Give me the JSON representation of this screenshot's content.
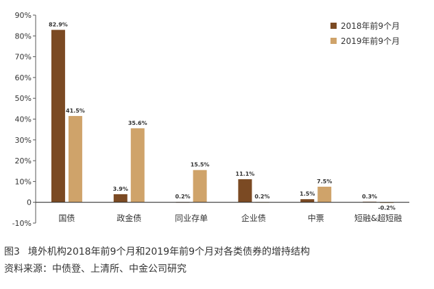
{
  "chart_data": {
    "type": "bar",
    "categories": [
      "国债",
      "政金债",
      "同业存单",
      "企业债",
      "中票",
      "短融&超短融"
    ],
    "series": [
      {
        "name": "2018年前9个月",
        "color": "#7B4A23",
        "values": [
          82.9,
          3.9,
          0.2,
          11.1,
          1.5,
          0.3
        ],
        "labels": [
          "82.9%",
          "3.9%",
          "0.2%",
          "11.1%",
          "1.5%",
          "0.3%"
        ]
      },
      {
        "name": "2019年前9个月",
        "color": "#CFA36A",
        "values": [
          41.5,
          35.6,
          15.5,
          0.2,
          7.5,
          -0.2
        ],
        "labels": [
          "41.5%",
          "35.6%",
          "15.5%",
          "0.2%",
          "7.5%",
          "-0.2%"
        ]
      }
    ],
    "ylim": [
      -10,
      90
    ],
    "yticks": [
      -10,
      0,
      10,
      20,
      30,
      40,
      50,
      60,
      70,
      80,
      90
    ],
    "ytick_labels": [
      "-10%",
      "0",
      "10%",
      "20%",
      "30%",
      "40%",
      "50%",
      "60%",
      "70%",
      "80%",
      "90%"
    ],
    "legend": "top-right",
    "grid": false
  },
  "caption": {
    "figure_label": "图3",
    "title": "境外机构2018年前9个月和2019年前9个月对各类债券的增持结构",
    "source": "资料来源：中债登、上清所、中金公司研究"
  }
}
